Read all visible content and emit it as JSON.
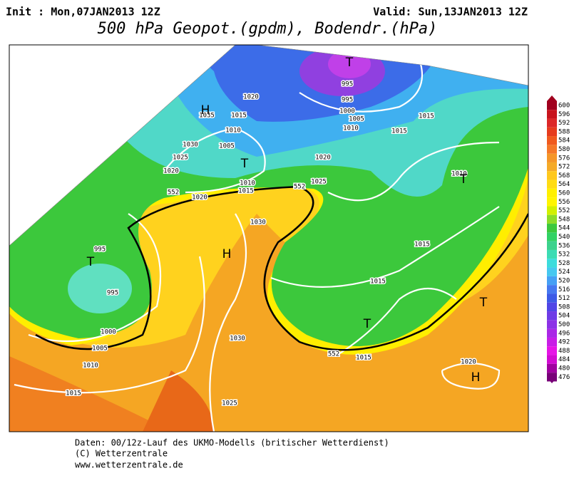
{
  "header": {
    "init": "Init : Mon,07JAN2013 12Z",
    "valid": "Valid: Sun,13JAN2013 12Z",
    "title": "500 hPa Geopot.(gpdm), Bodendr.(hPa)"
  },
  "colorbar": {
    "labels": [
      600,
      596,
      592,
      588,
      584,
      580,
      576,
      572,
      568,
      564,
      560,
      556,
      552,
      548,
      544,
      540,
      536,
      532,
      528,
      524,
      520,
      516,
      512,
      508,
      504,
      500,
      496,
      492,
      488,
      484,
      480,
      476
    ]
  },
  "map": {
    "labels": [
      "1020",
      "1015",
      "1035",
      "1010",
      "1030",
      "1005",
      "1025",
      "1020",
      "T",
      "1010",
      "1015",
      "H",
      "T",
      "995",
      "995",
      "1000",
      "1005",
      "1010",
      "1015",
      "1015",
      "1020",
      "1025",
      "1020",
      "1030",
      "H",
      "1010",
      "T",
      "1015",
      "1015",
      "T",
      "T",
      "995",
      "T",
      "995",
      "1000",
      "1005",
      "1010",
      "1015",
      "1030",
      "1025",
      "1015",
      "1020",
      "H",
      "552",
      "552",
      "552"
    ]
  },
  "footer": {
    "lines": [
      "Daten: 00/12z-Lauf des UKMO-Modells (britischer Wetterdienst)",
      "(C) Wetterzentrale",
      "www.wetterzentrale.de"
    ]
  }
}
